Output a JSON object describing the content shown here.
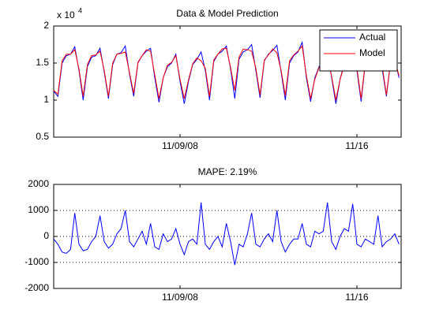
{
  "chart_data": [
    {
      "type": "line",
      "title": "Data & Model Prediction",
      "multiplier": "x 10",
      "multiplier_exponent": "4",
      "x": [
        0,
        4,
        8,
        12,
        16,
        20,
        24,
        28,
        32,
        36,
        40,
        44,
        48,
        52,
        56,
        60,
        64,
        68,
        72,
        76,
        80,
        84,
        88,
        92,
        96,
        100,
        104,
        108,
        112,
        116,
        120,
        124,
        128,
        132,
        136,
        140,
        144,
        148,
        152,
        156,
        160,
        164,
        168,
        172,
        176,
        180,
        184,
        188,
        192,
        196,
        200,
        204,
        208,
        212,
        216,
        220,
        224,
        228,
        232,
        236,
        240,
        244,
        248,
        252,
        256,
        260,
        264,
        268,
        272,
        276,
        280,
        284,
        288,
        292,
        296,
        300,
        304,
        308,
        312,
        316,
        320,
        324,
        328
      ],
      "xlim": [
        0,
        330
      ],
      "xticks": [
        {
          "value": 120,
          "label": "11/09/08"
        },
        {
          "value": 288,
          "label": "11/16"
        }
      ],
      "ylim": [
        0.5,
        2
      ],
      "yticks": [
        0.5,
        1,
        1.5,
        2
      ],
      "grid": false,
      "legend": "northeast",
      "series": [
        {
          "name": "Actual",
          "color": "#0000ff",
          "values": [
            1.12,
            1.05,
            1.5,
            1.6,
            1.62,
            1.72,
            1.4,
            1.0,
            1.45,
            1.58,
            1.6,
            1.7,
            1.38,
            1.02,
            1.48,
            1.62,
            1.64,
            1.73,
            1.35,
            1.05,
            1.5,
            1.6,
            1.66,
            1.7,
            1.3,
            0.97,
            1.3,
            1.45,
            1.5,
            1.62,
            1.25,
            0.95,
            1.25,
            1.48,
            1.55,
            1.65,
            1.4,
            1.0,
            1.52,
            1.62,
            1.66,
            1.73,
            1.42,
            1.02,
            1.55,
            1.65,
            1.68,
            1.75,
            1.4,
            1.03,
            1.53,
            1.62,
            1.67,
            1.74,
            1.38,
            1.0,
            1.5,
            1.6,
            1.65,
            1.78,
            1.3,
            0.98,
            1.3,
            1.45,
            1.52,
            1.68,
            1.3,
            0.95,
            1.28,
            1.5,
            1.55,
            1.75,
            1.4,
            0.98,
            1.5,
            1.62,
            1.68,
            1.75,
            1.42,
            1.05,
            1.52,
            1.55,
            1.3
          ]
        },
        {
          "name": "Model",
          "color": "#ff0000",
          "values": [
            1.13,
            1.08,
            1.53,
            1.62,
            1.62,
            1.68,
            1.42,
            1.05,
            1.48,
            1.6,
            1.61,
            1.66,
            1.4,
            1.05,
            1.5,
            1.62,
            1.63,
            1.65,
            1.37,
            1.09,
            1.51,
            1.6,
            1.68,
            1.66,
            1.34,
            1.02,
            1.3,
            1.47,
            1.51,
            1.6,
            1.28,
            1.02,
            1.27,
            1.49,
            1.57,
            1.53,
            1.43,
            1.05,
            1.54,
            1.62,
            1.69,
            1.7,
            1.44,
            1.13,
            1.58,
            1.69,
            1.68,
            1.66,
            1.43,
            1.07,
            1.54,
            1.61,
            1.69,
            1.64,
            1.4,
            1.06,
            1.53,
            1.61,
            1.66,
            1.73,
            1.33,
            1.02,
            1.28,
            1.44,
            1.5,
            1.55,
            1.32,
            1.0,
            1.28,
            1.47,
            1.53,
            1.63,
            1.43,
            1.02,
            1.51,
            1.64,
            1.71,
            1.67,
            1.46,
            1.07,
            1.53,
            1.54,
            1.33
          ]
        }
      ]
    },
    {
      "type": "line",
      "title": "MAPE: 2.19%",
      "x": [
        0,
        4,
        8,
        12,
        16,
        20,
        24,
        28,
        32,
        36,
        40,
        44,
        48,
        52,
        56,
        60,
        64,
        68,
        72,
        76,
        80,
        84,
        88,
        92,
        96,
        100,
        104,
        108,
        112,
        116,
        120,
        124,
        128,
        132,
        136,
        140,
        144,
        148,
        152,
        156,
        160,
        164,
        168,
        172,
        176,
        180,
        184,
        188,
        192,
        196,
        200,
        204,
        208,
        212,
        216,
        220,
        224,
        228,
        232,
        236,
        240,
        244,
        248,
        252,
        256,
        260,
        264,
        268,
        272,
        276,
        280,
        284,
        288,
        292,
        296,
        300,
        304,
        308,
        312,
        316,
        320,
        324,
        328
      ],
      "xlim": [
        0,
        330
      ],
      "xticks": [
        {
          "value": 120,
          "label": "11/09/08"
        },
        {
          "value": 288,
          "label": "11/16"
        }
      ],
      "ylim": [
        -2000,
        2000
      ],
      "yticks": [
        -2000,
        -1000,
        0,
        1000,
        2000
      ],
      "grid": true,
      "series": [
        {
          "color": "#0000ff",
          "values": [
            -100,
            -300,
            -600,
            -650,
            -500,
            900,
            -300,
            -550,
            -500,
            -200,
            0,
            800,
            -200,
            -450,
            -300,
            100,
            300,
            1000,
            -200,
            -400,
            -100,
            200,
            -300,
            500,
            -400,
            -500,
            100,
            -200,
            -100,
            300,
            -300,
            -700,
            -200,
            -100,
            -300,
            1300,
            -300,
            -500,
            -200,
            0,
            -400,
            500,
            -200,
            -1100,
            -300,
            -400,
            100,
            900,
            -300,
            -400,
            -100,
            100,
            -200,
            1000,
            -200,
            -600,
            -300,
            -100,
            -100,
            500,
            -300,
            -400,
            200,
            100,
            200,
            1300,
            -200,
            -500,
            0,
            300,
            200,
            1250,
            -300,
            -400,
            -100,
            -200,
            -300,
            800,
            -400,
            -200,
            -100,
            100,
            -300
          ]
        }
      ]
    }
  ]
}
